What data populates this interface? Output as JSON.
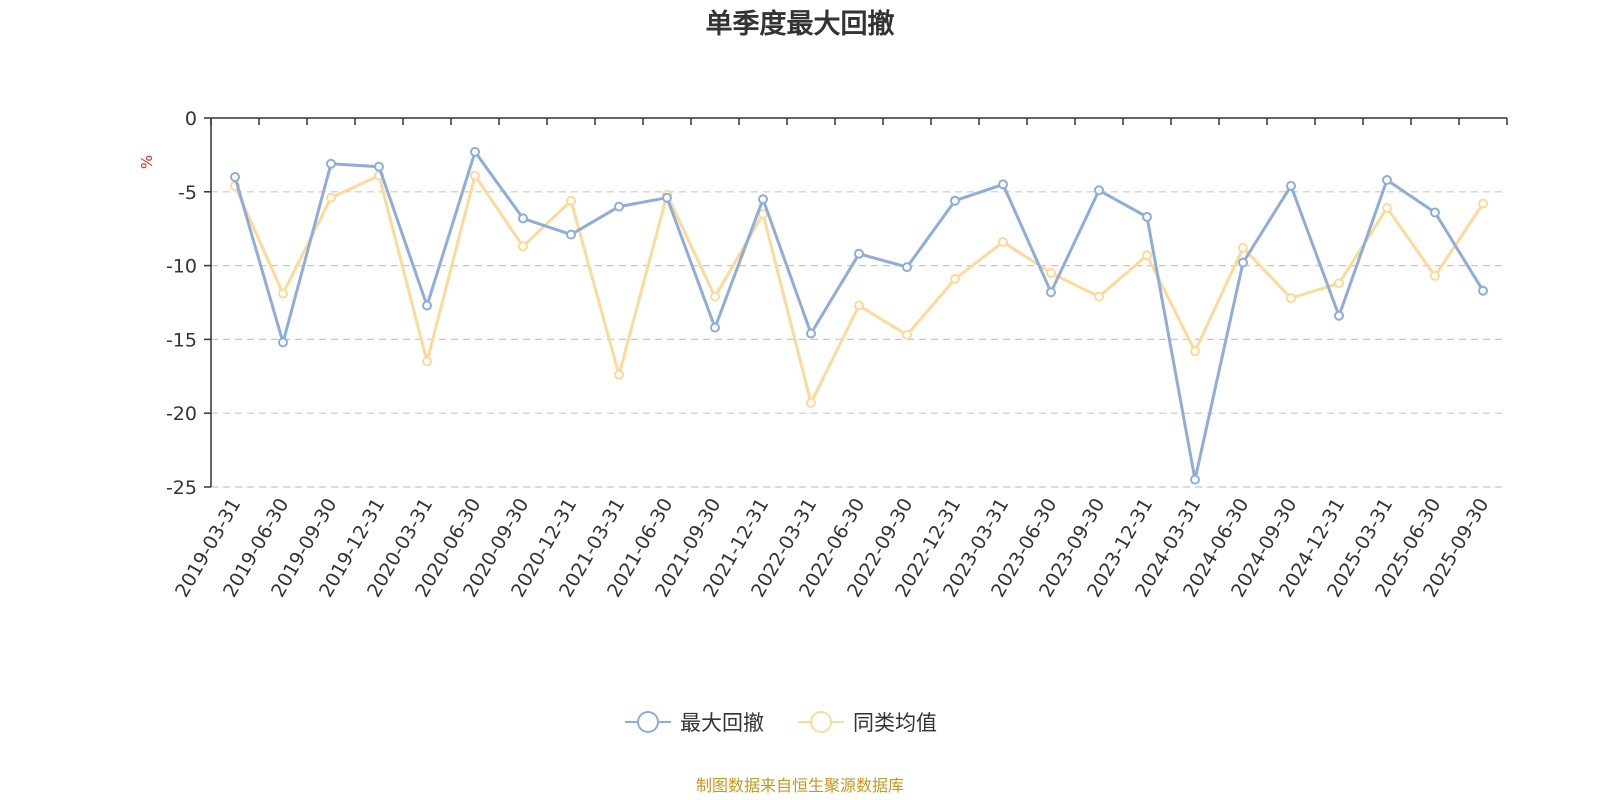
{
  "chart_data": {
    "type": "line",
    "title": "单季度最大回撤",
    "ylabel": "%",
    "ylim": [
      -25,
      0
    ],
    "yticks": [
      0,
      -5,
      -10,
      -15,
      -20,
      -25
    ],
    "grid": true,
    "legend_position": "bottom",
    "categories": [
      "2019-03-31",
      "2019-06-30",
      "2019-09-30",
      "2019-12-31",
      "2020-03-31",
      "2020-06-30",
      "2020-09-30",
      "2020-12-31",
      "2021-03-31",
      "2021-06-30",
      "2021-09-30",
      "2021-12-31",
      "2022-03-31",
      "2022-06-30",
      "2022-09-30",
      "2022-12-31",
      "2023-03-31",
      "2023-06-30",
      "2023-09-30",
      "2023-12-31",
      "2024-03-31",
      "2024-06-30",
      "2024-09-30",
      "2024-12-31",
      "2025-03-31",
      "2025-06-30",
      "2025-09-30"
    ],
    "series": [
      {
        "name": "最大回撤",
        "color": "#8eadd9",
        "values": [
          -4.0,
          -15.2,
          -3.1,
          -3.3,
          -12.7,
          -2.3,
          -6.8,
          -7.9,
          -6.0,
          -5.4,
          -14.2,
          -5.5,
          -14.6,
          -9.2,
          -10.1,
          -5.6,
          -4.5,
          -11.8,
          -4.9,
          -6.7,
          -24.5,
          -9.8,
          -4.6,
          -13.4,
          -4.2,
          -6.4,
          -11.7
        ]
      },
      {
        "name": "同类均值",
        "color": "#fdd99a",
        "values": [
          -4.6,
          -11.9,
          -5.4,
          -3.9,
          -16.5,
          -3.9,
          -8.7,
          -5.6,
          -17.4,
          -5.2,
          -12.1,
          -6.5,
          -19.3,
          -12.7,
          -14.7,
          -10.9,
          -8.4,
          -10.5,
          -12.1,
          -9.3,
          -15.8,
          -8.8,
          -12.2,
          -11.2,
          -6.1,
          -10.7,
          -5.8
        ]
      }
    ]
  },
  "footer": {
    "source": "制图数据来自恒生聚源数据库"
  }
}
